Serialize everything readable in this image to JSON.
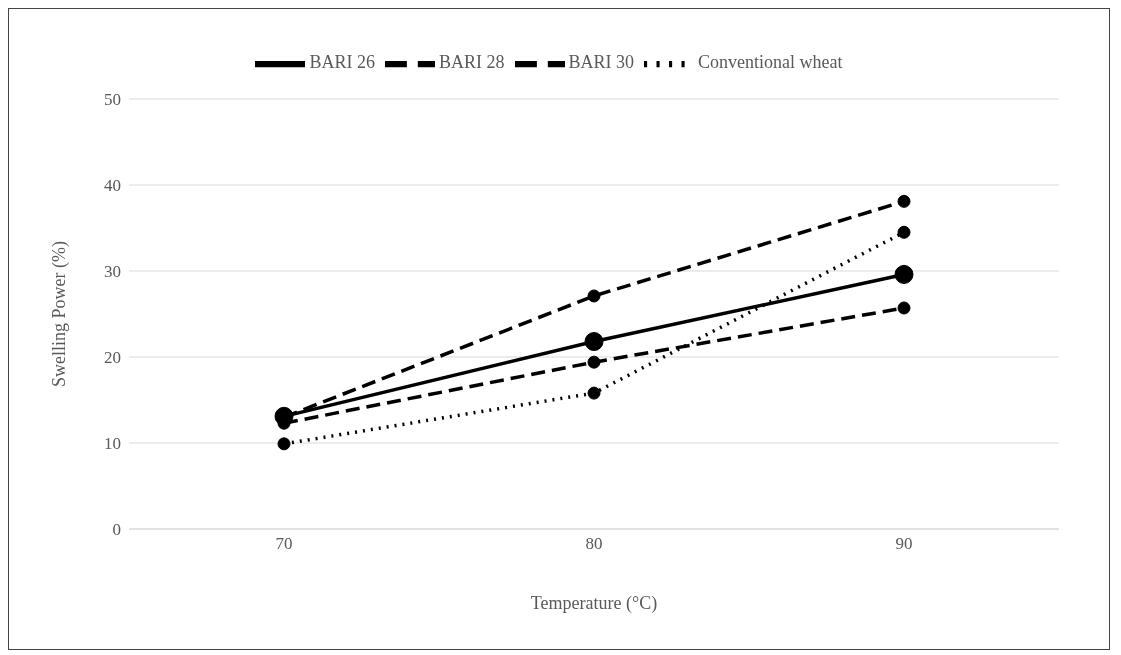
{
  "chart_data": {
    "type": "line",
    "xlabel": "Temperature (°C)",
    "ylabel": "Swelling Power (%)",
    "categories": [
      "70",
      "80",
      "90"
    ],
    "series": [
      {
        "name": "BARI 26",
        "color": "#000000",
        "values": [
          13.1,
          21.8,
          29.6
        ],
        "line_style": "solid"
      },
      {
        "name": "BARI 28",
        "color": "#000000",
        "values": [
          13,
          27.1,
          38.1
        ],
        "line_style": "dashed"
      },
      {
        "name": "BARI 30",
        "color": "#000000",
        "values": [
          12.3,
          19.4,
          25.7
        ],
        "line_style": "dashed"
      },
      {
        "name": "Conventional wheat",
        "color": "#000000",
        "values": [
          9.9,
          15.8,
          34.5
        ],
        "line_style": "dotted"
      }
    ],
    "ylim": [
      0,
      50
    ],
    "yticks": [
      0,
      10,
      20,
      30,
      40,
      50
    ],
    "grid": "y",
    "legend": "top",
    "marker": "circle"
  }
}
